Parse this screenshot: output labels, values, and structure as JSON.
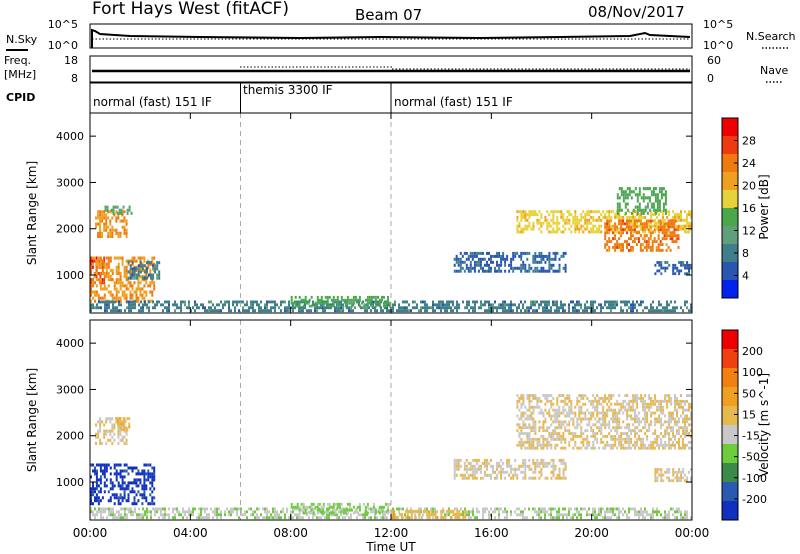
{
  "header": {
    "title": "Fort Hays West (fitACF)",
    "beam": "Beam 07",
    "date": "08/Nov/2017"
  },
  "top_panels": {
    "nsky_label": "N.Sky",
    "nsky_ticks": [
      "10^5",
      "10^0"
    ],
    "nsearch_label": "N.Search",
    "nsearch_ticks": [
      "10^5",
      "10^0"
    ],
    "freq_label": "Freq.",
    "freq_unit": "[MHz]",
    "freq_ticks": [
      "18",
      "8"
    ],
    "nave_label": "Nave",
    "nave_ticks": [
      "60",
      "0"
    ],
    "cpid_label": "CPID"
  },
  "cpid_segments": [
    {
      "label": "normal (fast) 151 IF",
      "start": 0,
      "end": 6
    },
    {
      "label": "themis 3300 IF",
      "start": 6,
      "end": 12
    },
    {
      "label": "normal (fast) 151 IF",
      "start": 12,
      "end": 24
    }
  ],
  "colors": {
    "power_scale": [
      "#0022ee",
      "#2a55b0",
      "#3f7f8a",
      "#5fa07a",
      "#4aa84a",
      "#e6d23a",
      "#f0a020",
      "#f07a10",
      "#ee3a10",
      "#ee0000"
    ],
    "velocity_scale": [
      "#1030c0",
      "#2a5ab0",
      "#3c8a4a",
      "#6ccc3c",
      "#c8c8c8",
      "#e6b850",
      "#f0a020",
      "#f08010",
      "#f04010",
      "#ee0000"
    ]
  },
  "chart_data": [
    {
      "type": "heatmap",
      "name": "power",
      "xlabel": "Time UT",
      "ylabel": "Slant Range [km]",
      "xlim": [
        0,
        24
      ],
      "ylim": [
        180,
        4500
      ],
      "yticks": [
        1000,
        2000,
        3000,
        4000
      ],
      "colorbar_label": "Power [dB]",
      "colorbar_ticks": [
        "28",
        "24",
        "20",
        "16",
        "12",
        "8",
        "4"
      ],
      "colorbar_range": [
        0,
        32
      ],
      "echo_regions": [
        {
          "t0": 0.0,
          "t1": 0.6,
          "r0": 800,
          "r1": 1400,
          "value": 28
        },
        {
          "t0": 0.0,
          "t1": 2.6,
          "r0": 400,
          "r1": 1400,
          "value": 22
        },
        {
          "t0": 0.2,
          "t1": 1.5,
          "r0": 1800,
          "r1": 2400,
          "value": 22
        },
        {
          "t0": 0.5,
          "t1": 1.7,
          "r0": 2300,
          "r1": 2500,
          "value": 12
        },
        {
          "t0": 1.5,
          "t1": 2.8,
          "r0": 900,
          "r1": 1300,
          "value": 8
        },
        {
          "t0": 0.0,
          "t1": 24.0,
          "r0": 200,
          "r1": 450,
          "value": 8
        },
        {
          "t0": 8.0,
          "t1": 12.0,
          "r0": 300,
          "r1": 550,
          "value": 14
        },
        {
          "t0": 14.5,
          "t1": 19.0,
          "r0": 1050,
          "r1": 1500,
          "value": 6
        },
        {
          "t0": 17.0,
          "t1": 24.0,
          "r0": 1900,
          "r1": 2400,
          "value": 18
        },
        {
          "t0": 20.5,
          "t1": 23.5,
          "r0": 1500,
          "r1": 2200,
          "value": 24
        },
        {
          "t0": 21.0,
          "t1": 23.0,
          "r0": 2300,
          "r1": 2900,
          "value": 14
        },
        {
          "t0": 22.5,
          "t1": 24.0,
          "r0": 1000,
          "r1": 1300,
          "value": 6
        }
      ]
    },
    {
      "type": "heatmap",
      "name": "velocity",
      "xlabel": "Time UT",
      "ylabel": "Slant Range [km]",
      "xlim": [
        0,
        24
      ],
      "ylim": [
        180,
        4500
      ],
      "yticks": [
        1000,
        2000,
        3000,
        4000
      ],
      "xticks": [
        "00:00",
        "04:00",
        "08:00",
        "12:00",
        "16:00",
        "20:00",
        "00:00"
      ],
      "colorbar_label": "Velocity [m s^-1]",
      "colorbar_ticks": [
        "200",
        "100",
        "50",
        "15",
        "-15",
        "-50",
        "-100",
        "-200"
      ],
      "colorbar_range": [
        -250,
        250
      ],
      "echo_regions": [
        {
          "t0": 0.0,
          "t1": 2.6,
          "r0": 500,
          "r1": 1400,
          "value": -220
        },
        {
          "t0": 0.2,
          "t1": 1.5,
          "r0": 1800,
          "r1": 2400,
          "value": 0
        },
        {
          "t0": 1.0,
          "t1": 1.6,
          "r0": 2100,
          "r1": 2400,
          "value": 30
        },
        {
          "t0": 0.0,
          "t1": 24.0,
          "r0": 200,
          "r1": 450,
          "value": -40
        },
        {
          "t0": 8.0,
          "t1": 12.0,
          "r0": 300,
          "r1": 550,
          "value": -60
        },
        {
          "t0": 12.0,
          "t1": 15.0,
          "r0": 200,
          "r1": 400,
          "value": 30
        },
        {
          "t0": 14.5,
          "t1": 19.0,
          "r0": 1050,
          "r1": 1500,
          "value": 0
        },
        {
          "t0": 17.0,
          "t1": 24.0,
          "r0": 1700,
          "r1": 2900,
          "value": 0
        },
        {
          "t0": 22.5,
          "t1": 24.0,
          "r0": 1000,
          "r1": 1300,
          "value": 0
        }
      ]
    }
  ]
}
